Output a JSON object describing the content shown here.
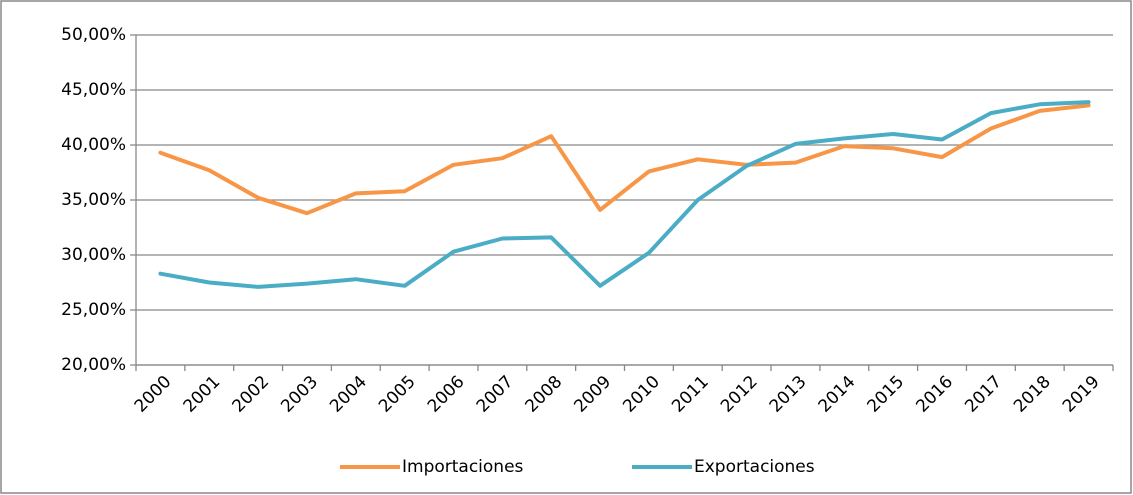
{
  "chart_data": {
    "type": "line",
    "categories": [
      "2000",
      "2001",
      "2002",
      "2003",
      "2004",
      "2005",
      "2006",
      "2007",
      "2008",
      "2009",
      "2010",
      "2011",
      "2012",
      "2013",
      "2014",
      "2015",
      "2016",
      "2017",
      "2018",
      "2019"
    ],
    "series": [
      {
        "name": "Importaciones",
        "color": "#f79646",
        "values": [
          39.3,
          37.7,
          35.2,
          33.8,
          35.6,
          35.8,
          38.2,
          38.8,
          40.8,
          34.1,
          37.6,
          38.7,
          38.2,
          38.4,
          39.9,
          39.7,
          38.9,
          41.5,
          43.1,
          43.6
        ]
      },
      {
        "name": "Exportaciones",
        "color": "#4bacc6",
        "values": [
          28.3,
          27.5,
          27.1,
          27.4,
          27.8,
          27.2,
          30.3,
          31.5,
          31.6,
          27.2,
          30.2,
          35.0,
          38.1,
          40.1,
          40.6,
          41.0,
          40.5,
          42.9,
          43.7,
          43.9
        ]
      }
    ],
    "ylim": [
      20,
      50
    ],
    "yticks": [
      {
        "value": 20,
        "label": "20,00%"
      },
      {
        "value": 25,
        "label": "25,00%"
      },
      {
        "value": 30,
        "label": "30,00%"
      },
      {
        "value": 35,
        "label": "35,00%"
      },
      {
        "value": 40,
        "label": "40,00%"
      },
      {
        "value": 45,
        "label": "45,00%"
      },
      {
        "value": 50,
        "label": "50,00%"
      }
    ],
    "grid": true,
    "legend": "bottom"
  }
}
